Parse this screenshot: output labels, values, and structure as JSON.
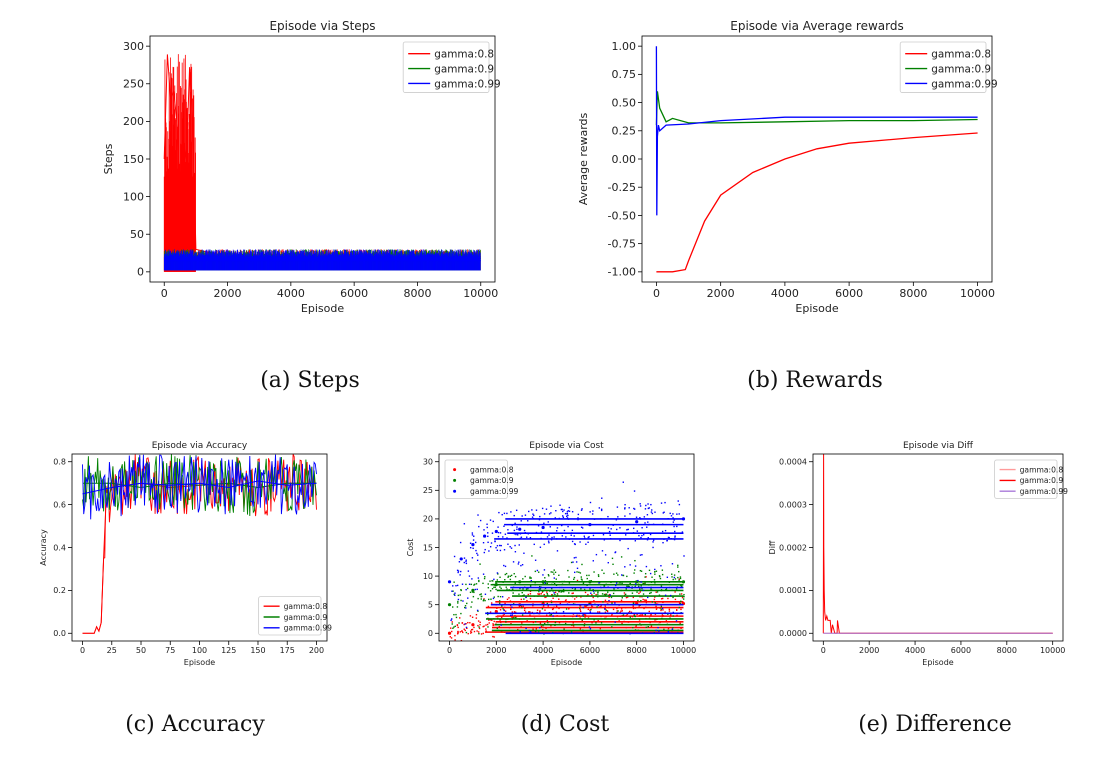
{
  "colors": {
    "gamma_08": "#ff0000",
    "gamma_09": "#008000",
    "gamma_099": "#0000ff",
    "diff_08": "#ff9a9a",
    "diff_099": "#a878d8"
  },
  "captions": {
    "a": "(a) Steps",
    "b": "(b) Rewards",
    "c": "(c) Accuracy",
    "d": "(d) Cost",
    "e": "(e) Difference"
  },
  "chart_data": [
    {
      "id": "steps",
      "type": "line",
      "title": "Episode via Steps",
      "xlabel": "Episode",
      "ylabel": "Steps",
      "xlim": [
        0,
        10000
      ],
      "ylim": [
        0,
        300
      ],
      "xticks": [
        0,
        2000,
        4000,
        6000,
        8000,
        10000
      ],
      "yticks": [
        0,
        50,
        100,
        150,
        200,
        250,
        300
      ],
      "legend_position": "top-right",
      "grid": false,
      "series": [
        {
          "name": "gamma:0.8",
          "color": "#ff0000",
          "x": [
            0,
            100,
            200,
            300,
            400,
            500,
            600,
            700,
            800,
            900,
            1000,
            2000,
            4000,
            6000,
            8000,
            10000
          ],
          "y": [
            150,
            289,
            230,
            240,
            200,
            120,
            180,
            150,
            272,
            200,
            30,
            20,
            20,
            20,
            20,
            20
          ]
        },
        {
          "name": "gamma:0.9",
          "color": "#008000",
          "x": [
            0,
            2000,
            4000,
            6000,
            8000,
            10000
          ],
          "y": [
            18,
            18,
            18,
            18,
            18,
            18
          ]
        },
        {
          "name": "gamma:0.99",
          "color": "#0000ff",
          "x": [
            0,
            2000,
            4000,
            6000,
            8000,
            10000
          ],
          "y": [
            15,
            15,
            15,
            15,
            15,
            15
          ]
        }
      ]
    },
    {
      "id": "rewards",
      "type": "line",
      "title": "Episode via Average rewards",
      "xlabel": "Episode",
      "ylabel": "Average rewards",
      "xlim": [
        0,
        10000
      ],
      "ylim": [
        -1.0,
        1.0
      ],
      "xticks": [
        0,
        2000,
        4000,
        6000,
        8000,
        10000
      ],
      "yticks": [
        -1.0,
        -0.75,
        -0.5,
        -0.25,
        0.0,
        0.25,
        0.5,
        0.75,
        1.0
      ],
      "legend_position": "top-right",
      "grid": false,
      "series": [
        {
          "name": "gamma:0.8",
          "color": "#ff0000",
          "x": [
            0,
            500,
            900,
            1000,
            1500,
            2000,
            3000,
            4000,
            5000,
            6000,
            8000,
            10000
          ],
          "y": [
            -1.0,
            -1.0,
            -0.98,
            -0.9,
            -0.55,
            -0.32,
            -0.12,
            0.0,
            0.09,
            0.14,
            0.19,
            0.23
          ]
        },
        {
          "name": "gamma:0.9",
          "color": "#008000",
          "x": [
            0,
            30,
            100,
            300,
            500,
            1000,
            2000,
            4000,
            6000,
            8000,
            10000
          ],
          "y": [
            0.3,
            0.6,
            0.45,
            0.33,
            0.36,
            0.32,
            0.32,
            0.33,
            0.34,
            0.34,
            0.35
          ]
        },
        {
          "name": "gamma:0.99",
          "color": "#0000ff",
          "x": [
            0,
            10,
            30,
            60,
            100,
            300,
            1000,
            2000,
            4000,
            6000,
            8000,
            10000
          ],
          "y": [
            1.0,
            -0.5,
            0.2,
            0.3,
            0.25,
            0.3,
            0.31,
            0.34,
            0.37,
            0.37,
            0.37,
            0.37
          ]
        }
      ]
    },
    {
      "id": "accuracy",
      "type": "line",
      "title": "Episode via Accuracy",
      "xlabel": "Episode",
      "ylabel": "Accuracy",
      "xlim": [
        0,
        200
      ],
      "ylim": [
        0.0,
        0.8
      ],
      "xticks": [
        0,
        25,
        50,
        75,
        100,
        125,
        150,
        175,
        200
      ],
      "yticks": [
        0.0,
        0.2,
        0.4,
        0.6,
        0.8
      ],
      "legend_position": "bottom-right",
      "grid": false,
      "series": [
        {
          "name": "gamma:0.8",
          "color": "#ff0000",
          "x": [
            0,
            10,
            12,
            14,
            16,
            18,
            20,
            25,
            50,
            75,
            100,
            125,
            150,
            175,
            200
          ],
          "y": [
            0.0,
            0.0,
            0.03,
            0.01,
            0.05,
            0.35,
            0.6,
            0.68,
            0.7,
            0.68,
            0.69,
            0.7,
            0.68,
            0.7,
            0.7
          ]
        },
        {
          "name": "gamma:0.9",
          "color": "#008000",
          "x": [
            0,
            25,
            50,
            75,
            100,
            125,
            150,
            175,
            200
          ],
          "y": [
            0.7,
            0.7,
            0.68,
            0.7,
            0.69,
            0.7,
            0.68,
            0.7,
            0.7
          ]
        },
        {
          "name": "gamma:0.99",
          "color": "#0000ff",
          "x": [
            0,
            25,
            50,
            75,
            100,
            125,
            150,
            175,
            200
          ],
          "y": [
            0.65,
            0.68,
            0.7,
            0.69,
            0.7,
            0.68,
            0.71,
            0.69,
            0.7
          ]
        }
      ]
    },
    {
      "id": "cost",
      "type": "scatter",
      "title": "Episode via Cost",
      "xlabel": "Episode",
      "ylabel": "Cost",
      "xlim": [
        0,
        10000
      ],
      "ylim": [
        0,
        30
      ],
      "xticks": [
        0,
        2000,
        4000,
        6000,
        8000,
        10000
      ],
      "yticks": [
        0,
        5,
        10,
        15,
        20,
        25,
        30
      ],
      "legend_position": "top-left",
      "grid": false,
      "series": [
        {
          "name": "gamma:0.8",
          "color": "#ff0000",
          "x": [
            0,
            1000,
            2000,
            3000,
            4000,
            6000,
            8000,
            10000
          ],
          "y": [
            0.0,
            1.5,
            3.8,
            5.0,
            5.2,
            5.2,
            5.2,
            5.2
          ]
        },
        {
          "name": "gamma:0.9",
          "color": "#008000",
          "x": [
            0,
            1000,
            2000,
            3000,
            4000,
            6000,
            8000,
            10000
          ],
          "y": [
            5.0,
            7.5,
            8.5,
            9.0,
            9.0,
            9.0,
            9.0,
            9.0
          ]
        },
        {
          "name": "gamma:0.99",
          "color": "#0000ff",
          "x": [
            0,
            500,
            1000,
            1500,
            2000,
            3000,
            4000,
            6000,
            8000,
            10000
          ],
          "y": [
            9.0,
            13.0,
            15.5,
            17.0,
            17.8,
            18.2,
            18.5,
            19.0,
            19.5,
            20.0
          ]
        }
      ]
    },
    {
      "id": "diff",
      "type": "line",
      "title": "Episode via Diff",
      "xlabel": "Episode",
      "ylabel": "Diff",
      "xlim": [
        0,
        10000
      ],
      "ylim": [
        0.0,
        0.0004
      ],
      "xticks": [
        0,
        2000,
        4000,
        6000,
        8000,
        10000
      ],
      "yticks": [
        0.0,
        0.0001,
        0.0002,
        0.0003,
        0.0004
      ],
      "legend_position": "top-right",
      "grid": false,
      "series": [
        {
          "name": "gamma:0.8",
          "color": "#ff9a9a",
          "x": [
            0,
            10000
          ],
          "y": [
            0.0,
            0.0
          ]
        },
        {
          "name": "gamma:0.9",
          "color": "#ff0000",
          "x": [
            0,
            10,
            20,
            40,
            60,
            100,
            150,
            200,
            300,
            350,
            400,
            500,
            600,
            620,
            700,
            10000
          ],
          "y": [
            0.0,
            0.00042,
            0.0002,
            0.0001,
            5e-05,
            3e-05,
            4e-05,
            3e-05,
            3e-05,
            0.0,
            2e-05,
            0.0,
            0.0,
            3e-05,
            0.0,
            0.0
          ]
        },
        {
          "name": "gamma:0.99",
          "color": "#a878d8",
          "x": [
            0,
            10000
          ],
          "y": [
            0.0,
            0.0
          ]
        }
      ]
    }
  ]
}
